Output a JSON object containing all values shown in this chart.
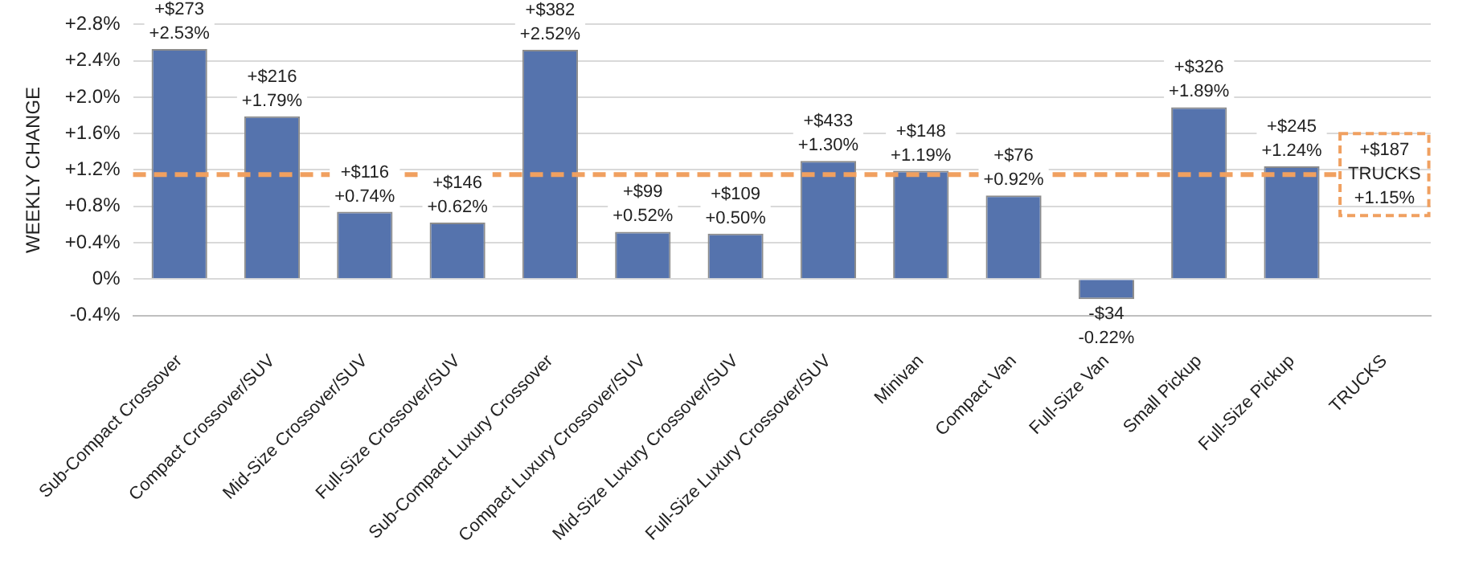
{
  "chart_data": {
    "type": "bar",
    "ylabel": "WEEKLY CHANGE",
    "categories": [
      "Sub-Compact Crossover",
      "Compact Crossover/SUV",
      "Mid-Size Crossover/SUV",
      "Full-Size Crossover/SUV",
      "Sub-Compact Luxury Crossover",
      "Compact Luxury Crossover/SUV",
      "Mid-Size Luxury Crossover/SUV",
      "Full-Size Luxury Crossover/SUV",
      "Minivan",
      "Compact Van",
      "Full-Size Van",
      "Small Pickup",
      "Full-Size Pickup",
      "TRUCKS"
    ],
    "values": [
      2.53,
      1.79,
      0.74,
      0.62,
      2.52,
      0.52,
      0.5,
      1.3,
      1.19,
      0.92,
      -0.22,
      1.89,
      1.24,
      null
    ],
    "value_labels": [
      "+$273\n+2.53%",
      "+$216\n+1.79%",
      "+$116\n+0.74%",
      "+$146\n+0.62%",
      "+$382\n+2.52%",
      "+$99\n+0.52%",
      "+$109\n+0.50%",
      "+$433\n+1.30%",
      "+$148\n+1.19%",
      "+$76\n+0.92%",
      "-$34\n-0.22%",
      "+$326\n+1.89%",
      "+$245\n+1.24%",
      null
    ],
    "color": "#5573ad",
    "ylim": [
      -0.4,
      2.8
    ],
    "yticks": [
      {
        "value": -0.4,
        "label": "-0.4%"
      },
      {
        "value": 0,
        "label": "0%"
      },
      {
        "value": 0.4,
        "label": "+0.4%"
      },
      {
        "value": 0.8,
        "label": "+0.8%"
      },
      {
        "value": 1.2,
        "label": "+1.2%"
      },
      {
        "value": 1.6,
        "label": "+1.6%"
      },
      {
        "value": 2.0,
        "label": "+2.0%"
      },
      {
        "value": 2.4,
        "label": "+2.4%"
      },
      {
        "value": 2.8,
        "label": "+2.8%"
      }
    ],
    "ref_lines": [
      {
        "axis": "y",
        "value": 1.15,
        "label": "+$187\nTRUCKS\n+1.15%",
        "color": "#f0a060",
        "line_style": "dashed"
      }
    ],
    "grid": "y",
    "legend": false
  }
}
